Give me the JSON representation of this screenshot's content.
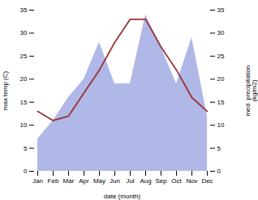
{
  "chart_data": {
    "type": "line",
    "categories": [
      "Jan",
      "Feb",
      "Mar",
      "Apr",
      "May",
      "Jun",
      "Jul",
      "Aug",
      "Sep",
      "Oct",
      "Nov",
      "Dec"
    ],
    "xlabel": "date (month)",
    "ylabel": "max temp (C)",
    "y2label": "med. precipitation\n(kg/m2)",
    "ylim": [
      0,
      35
    ],
    "yticks": [
      0,
      5,
      10,
      15,
      20,
      25,
      30,
      35
    ],
    "y2lim": [
      0,
      35
    ],
    "y2ticks": [
      0,
      5,
      10,
      15,
      20,
      25,
      30,
      35
    ],
    "series": [
      {
        "type": "area",
        "axis": "y2",
        "color": "#b0b8e8",
        "values": [
          7,
          11,
          16,
          20,
          28,
          19,
          19,
          34,
          27,
          19,
          29,
          12
        ]
      },
      {
        "type": "line",
        "color": "#993333",
        "values": [
          13,
          11,
          12,
          17,
          22,
          28,
          33,
          33,
          27,
          22,
          16,
          13
        ]
      }
    ]
  }
}
